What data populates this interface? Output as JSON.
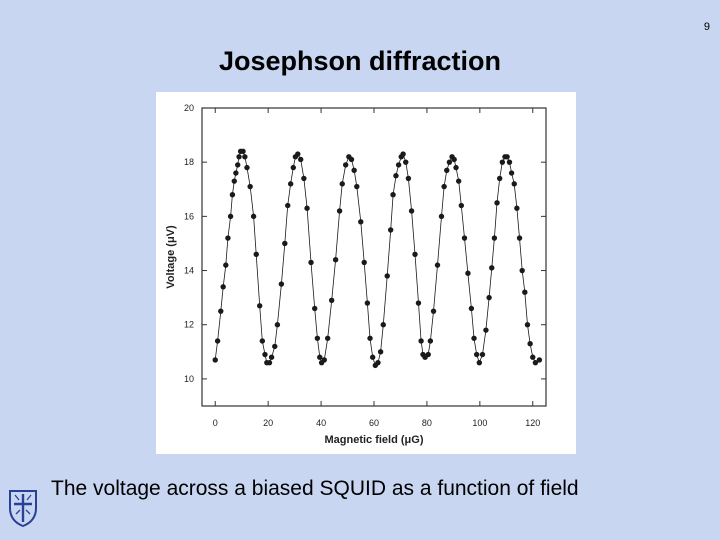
{
  "page": {
    "page_number": "9",
    "title": "Josephson diffraction",
    "caption": "The voltage across a biased SQUID as a function of field"
  },
  "colors": {
    "background": "#c8d6f2",
    "figure_background": "#ffffff",
    "data": "#1a1a1a",
    "logo": "#2a3f96"
  },
  "logo": {
    "icon": "university-crest-icon"
  },
  "chart_data": {
    "type": "scatter",
    "title": "",
    "xlabel": "Magnetic field (μG)",
    "ylabel": "Voltage (μV)",
    "xlim": [
      -5,
      125
    ],
    "ylim": [
      9,
      20
    ],
    "xticks": [
      0,
      20,
      40,
      60,
      80,
      100,
      120
    ],
    "yticks": [
      10,
      12,
      14,
      16,
      18,
      20
    ],
    "xtick_labels": [
      "0",
      "20",
      "40",
      "60",
      "80",
      "100",
      "120"
    ],
    "ytick_labels": [
      "10",
      "12",
      "14",
      "16",
      "18",
      "20"
    ],
    "grid": false,
    "legend": "none",
    "series": [
      {
        "points": [
          [
            0.0,
            10.7
          ],
          [
            0.9,
            11.4
          ],
          [
            2.1,
            12.5
          ],
          [
            3.0,
            13.4
          ],
          [
            4.0,
            14.2
          ],
          [
            4.8,
            15.2
          ],
          [
            5.8,
            16.0
          ],
          [
            6.5,
            16.8
          ],
          [
            7.2,
            17.3
          ],
          [
            7.8,
            17.6
          ],
          [
            8.5,
            17.9
          ],
          [
            9.0,
            18.2
          ],
          [
            9.6,
            18.4
          ],
          [
            10.5,
            18.4
          ],
          [
            11.2,
            18.2
          ],
          [
            12.0,
            17.8
          ],
          [
            13.2,
            17.1
          ],
          [
            14.5,
            16.0
          ],
          [
            15.5,
            14.6
          ],
          [
            16.8,
            12.7
          ],
          [
            17.8,
            11.4
          ],
          [
            18.8,
            10.9
          ],
          [
            19.5,
            10.6
          ],
          [
            20.5,
            10.6
          ],
          [
            21.3,
            10.8
          ],
          [
            22.5,
            11.2
          ],
          [
            23.5,
            12.0
          ],
          [
            25.0,
            13.5
          ],
          [
            26.3,
            15.0
          ],
          [
            27.4,
            16.4
          ],
          [
            28.5,
            17.2
          ],
          [
            29.5,
            17.8
          ],
          [
            30.3,
            18.2
          ],
          [
            31.2,
            18.3
          ],
          [
            32.3,
            18.1
          ],
          [
            33.5,
            17.4
          ],
          [
            34.7,
            16.3
          ],
          [
            36.2,
            14.3
          ],
          [
            37.6,
            12.6
          ],
          [
            38.6,
            11.5
          ],
          [
            39.5,
            10.8
          ],
          [
            40.2,
            10.6
          ],
          [
            41.2,
            10.7
          ],
          [
            42.5,
            11.5
          ],
          [
            44.0,
            12.9
          ],
          [
            45.5,
            14.4
          ],
          [
            47.0,
            16.2
          ],
          [
            48.0,
            17.2
          ],
          [
            49.3,
            17.9
          ],
          [
            50.5,
            18.2
          ],
          [
            51.5,
            18.1
          ],
          [
            52.5,
            17.7
          ],
          [
            53.5,
            17.1
          ],
          [
            55.0,
            15.8
          ],
          [
            56.3,
            14.3
          ],
          [
            57.5,
            12.8
          ],
          [
            58.5,
            11.5
          ],
          [
            59.5,
            10.8
          ],
          [
            60.5,
            10.5
          ],
          [
            61.5,
            10.6
          ],
          [
            62.5,
            11.0
          ],
          [
            63.5,
            12.0
          ],
          [
            65.0,
            13.8
          ],
          [
            66.3,
            15.5
          ],
          [
            67.2,
            16.8
          ],
          [
            68.3,
            17.5
          ],
          [
            69.3,
            17.9
          ],
          [
            70.3,
            18.2
          ],
          [
            71.0,
            18.3
          ],
          [
            72.0,
            18.0
          ],
          [
            73.0,
            17.4
          ],
          [
            74.2,
            16.2
          ],
          [
            75.5,
            14.6
          ],
          [
            76.8,
            12.8
          ],
          [
            77.8,
            11.4
          ],
          [
            78.5,
            10.9
          ],
          [
            79.3,
            10.8
          ],
          [
            80.5,
            10.9
          ],
          [
            81.3,
            11.4
          ],
          [
            82.5,
            12.5
          ],
          [
            84.0,
            14.2
          ],
          [
            85.5,
            16.0
          ],
          [
            86.5,
            17.1
          ],
          [
            87.5,
            17.7
          ],
          [
            88.5,
            18.0
          ],
          [
            89.5,
            18.2
          ],
          [
            90.3,
            18.1
          ],
          [
            91.0,
            17.8
          ],
          [
            92.0,
            17.3
          ],
          [
            93.0,
            16.4
          ],
          [
            94.2,
            15.2
          ],
          [
            95.5,
            13.9
          ],
          [
            96.8,
            12.6
          ],
          [
            97.8,
            11.5
          ],
          [
            98.8,
            10.9
          ],
          [
            99.8,
            10.6
          ],
          [
            101.0,
            10.9
          ],
          [
            102.3,
            11.8
          ],
          [
            103.5,
            13.0
          ],
          [
            104.5,
            14.1
          ],
          [
            105.5,
            15.2
          ],
          [
            106.5,
            16.5
          ],
          [
            107.5,
            17.4
          ],
          [
            108.5,
            18.0
          ],
          [
            109.5,
            18.2
          ],
          [
            110.3,
            18.2
          ],
          [
            111.2,
            18.0
          ],
          [
            112.0,
            17.6
          ],
          [
            113.0,
            17.2
          ],
          [
            114.0,
            16.3
          ],
          [
            115.0,
            15.2
          ],
          [
            116.0,
            14.0
          ],
          [
            117.0,
            13.2
          ],
          [
            118.0,
            12.0
          ],
          [
            119.0,
            11.3
          ],
          [
            120.0,
            10.8
          ],
          [
            121.0,
            10.6
          ],
          [
            122.5,
            10.7
          ]
        ]
      }
    ]
  }
}
